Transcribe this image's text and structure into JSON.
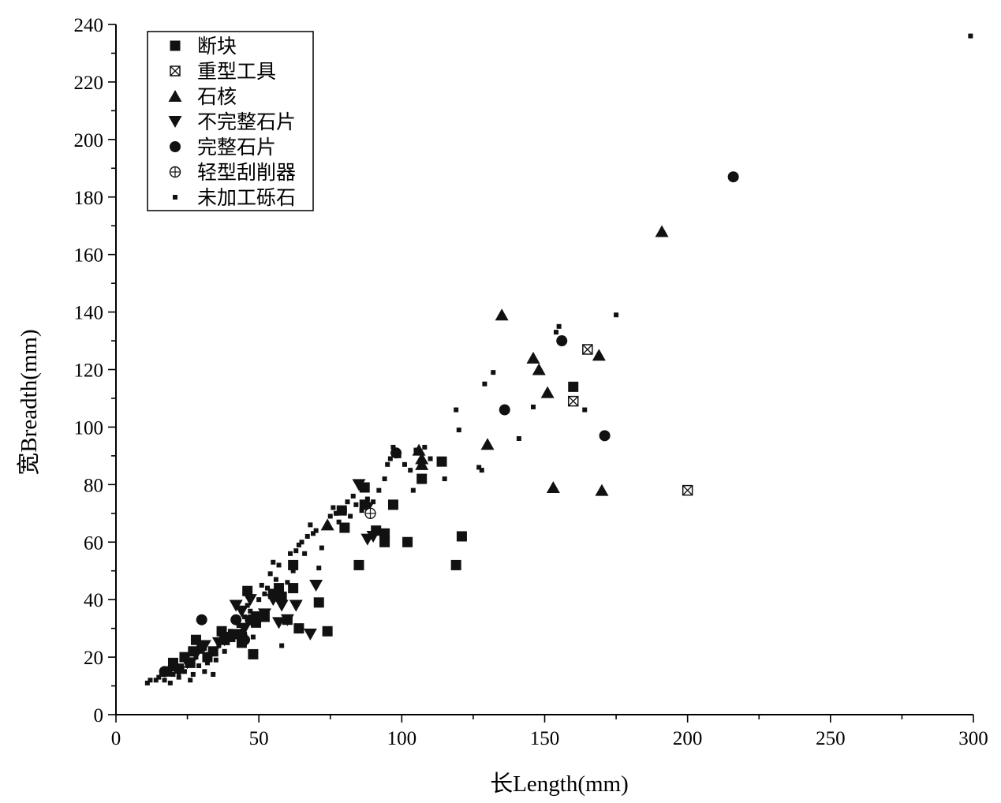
{
  "chart_data": {
    "type": "scatter",
    "xlabel": "长Length(mm)",
    "ylabel": "宽Breadth(mm)",
    "xlim": [
      0,
      300
    ],
    "ylim": [
      0,
      240
    ],
    "x_ticks": [
      0,
      50,
      100,
      150,
      200,
      250,
      300
    ],
    "x_tick_labels": [
      "0",
      "50",
      "100",
      "150",
      "200",
      "250",
      "300"
    ],
    "y_ticks": [
      0,
      20,
      40,
      60,
      80,
      100,
      120,
      140,
      160,
      180,
      200,
      220,
      240
    ],
    "y_tick_labels": [
      "0",
      "20",
      "40",
      "60",
      "80",
      "100",
      "120",
      "140",
      "160",
      "180",
      "200",
      "220",
      "240"
    ],
    "grid": false,
    "legend_position": "top-left",
    "series": [
      {
        "name": "断块",
        "marker": "square",
        "points": [
          [
            18,
            15
          ],
          [
            20,
            18
          ],
          [
            22,
            16
          ],
          [
            24,
            20
          ],
          [
            26,
            18
          ],
          [
            27,
            22
          ],
          [
            28,
            26
          ],
          [
            30,
            24
          ],
          [
            32,
            20
          ],
          [
            34,
            22
          ],
          [
            37,
            29
          ],
          [
            38,
            26
          ],
          [
            40,
            27
          ],
          [
            42,
            28
          ],
          [
            44,
            25
          ],
          [
            46,
            43
          ],
          [
            48,
            21
          ],
          [
            49,
            32
          ],
          [
            52,
            34
          ],
          [
            55,
            42
          ],
          [
            57,
            44
          ],
          [
            58,
            41
          ],
          [
            62,
            44
          ],
          [
            62,
            52
          ],
          [
            64,
            30
          ],
          [
            71,
            39
          ],
          [
            74,
            29
          ],
          [
            60,
            33
          ],
          [
            79,
            71
          ],
          [
            80,
            65
          ],
          [
            85,
            52
          ],
          [
            87,
            73
          ],
          [
            87,
            79
          ],
          [
            91,
            64
          ],
          [
            94,
            60
          ],
          [
            94,
            63
          ],
          [
            97,
            73
          ],
          [
            102,
            60
          ],
          [
            107,
            82
          ],
          [
            114,
            88
          ],
          [
            119,
            52
          ],
          [
            121,
            62
          ],
          [
            160,
            114
          ]
        ]
      },
      {
        "name": "重型工具",
        "marker": "square-x",
        "points": [
          [
            165,
            127
          ],
          [
            160,
            109
          ],
          [
            200,
            78
          ]
        ]
      },
      {
        "name": "石核",
        "marker": "triangle-up",
        "points": [
          [
            21,
            17
          ],
          [
            74,
            66
          ],
          [
            106,
            92
          ],
          [
            107,
            87
          ],
          [
            107,
            89
          ],
          [
            130,
            94
          ],
          [
            135,
            139
          ],
          [
            146,
            124
          ],
          [
            148,
            120
          ],
          [
            151,
            112
          ],
          [
            153,
            79
          ],
          [
            169,
            125
          ],
          [
            170,
            78
          ],
          [
            191,
            168
          ]
        ]
      },
      {
        "name": "不完整石片",
        "marker": "triangle-down",
        "points": [
          [
            22,
            15
          ],
          [
            25,
            18
          ],
          [
            28,
            21
          ],
          [
            31,
            24
          ],
          [
            36,
            25
          ],
          [
            38,
            26
          ],
          [
            42,
            38
          ],
          [
            44,
            36
          ],
          [
            45,
            30
          ],
          [
            47,
            40
          ],
          [
            49,
            34
          ],
          [
            52,
            35
          ],
          [
            55,
            40
          ],
          [
            57,
            32
          ],
          [
            58,
            38
          ],
          [
            60,
            33
          ],
          [
            63,
            38
          ],
          [
            68,
            28
          ],
          [
            70,
            45
          ],
          [
            85,
            80
          ],
          [
            88,
            72
          ],
          [
            88,
            61
          ],
          [
            90,
            62
          ]
        ]
      },
      {
        "name": "完整石片",
        "marker": "circle",
        "points": [
          [
            17,
            15
          ],
          [
            30,
            33
          ],
          [
            42,
            33
          ],
          [
            44,
            28
          ],
          [
            45,
            26
          ],
          [
            47,
            33
          ],
          [
            98,
            91
          ],
          [
            136,
            106
          ],
          [
            156,
            130
          ],
          [
            171,
            97
          ],
          [
            216,
            187
          ]
        ]
      },
      {
        "name": "轻型刮削器",
        "marker": "circle-plus",
        "points": [
          [
            89,
            70
          ]
        ]
      },
      {
        "name": "未加工砾石",
        "marker": "small-square",
        "points": [
          [
            11,
            11
          ],
          [
            12,
            12
          ],
          [
            14,
            12
          ],
          [
            15,
            13
          ],
          [
            16,
            14
          ],
          [
            17,
            12
          ],
          [
            18,
            16
          ],
          [
            19,
            11
          ],
          [
            20,
            14
          ],
          [
            21,
            17
          ],
          [
            22,
            13
          ],
          [
            23,
            16
          ],
          [
            24,
            15
          ],
          [
            25,
            19
          ],
          [
            26,
            12
          ],
          [
            27,
            14
          ],
          [
            28,
            20
          ],
          [
            29,
            17
          ],
          [
            30,
            22
          ],
          [
            31,
            15
          ],
          [
            32,
            18
          ],
          [
            33,
            21
          ],
          [
            34,
            14
          ],
          [
            35,
            19
          ],
          [
            36,
            24
          ],
          [
            38,
            22
          ],
          [
            39,
            25
          ],
          [
            40,
            29
          ],
          [
            41,
            27
          ],
          [
            43,
            31
          ],
          [
            45,
            34
          ],
          [
            46,
            38
          ],
          [
            47,
            36
          ],
          [
            48,
            27
          ],
          [
            50,
            40
          ],
          [
            51,
            45
          ],
          [
            52,
            42
          ],
          [
            53,
            44
          ],
          [
            54,
            49
          ],
          [
            55,
            53
          ],
          [
            56,
            47
          ],
          [
            57,
            52
          ],
          [
            58,
            24
          ],
          [
            60,
            46
          ],
          [
            61,
            56
          ],
          [
            62,
            50
          ],
          [
            63,
            57
          ],
          [
            64,
            59
          ],
          [
            65,
            60
          ],
          [
            66,
            56
          ],
          [
            67,
            62
          ],
          [
            68,
            66
          ],
          [
            69,
            63
          ],
          [
            70,
            64
          ],
          [
            71,
            51
          ],
          [
            72,
            58
          ],
          [
            74,
            66
          ],
          [
            75,
            69
          ],
          [
            76,
            72
          ],
          [
            77,
            70
          ],
          [
            78,
            67
          ],
          [
            80,
            71
          ],
          [
            81,
            74
          ],
          [
            82,
            69
          ],
          [
            83,
            76
          ],
          [
            84,
            73
          ],
          [
            86,
            71
          ],
          [
            88,
            75
          ],
          [
            90,
            74
          ],
          [
            92,
            78
          ],
          [
            94,
            82
          ],
          [
            95,
            87
          ],
          [
            96,
            89
          ],
          [
            97,
            93
          ],
          [
            99,
            90
          ],
          [
            101,
            87
          ],
          [
            103,
            85
          ],
          [
            104,
            78
          ],
          [
            105,
            92
          ],
          [
            108,
            93
          ],
          [
            110,
            89
          ],
          [
            115,
            82
          ],
          [
            119,
            106
          ],
          [
            120,
            99
          ],
          [
            127,
            86
          ],
          [
            128,
            85
          ],
          [
            129,
            115
          ],
          [
            132,
            119
          ],
          [
            141,
            96
          ],
          [
            146,
            107
          ],
          [
            154,
            133
          ],
          [
            155,
            135
          ],
          [
            164,
            106
          ],
          [
            175,
            139
          ],
          [
            299,
            236
          ]
        ]
      }
    ]
  }
}
